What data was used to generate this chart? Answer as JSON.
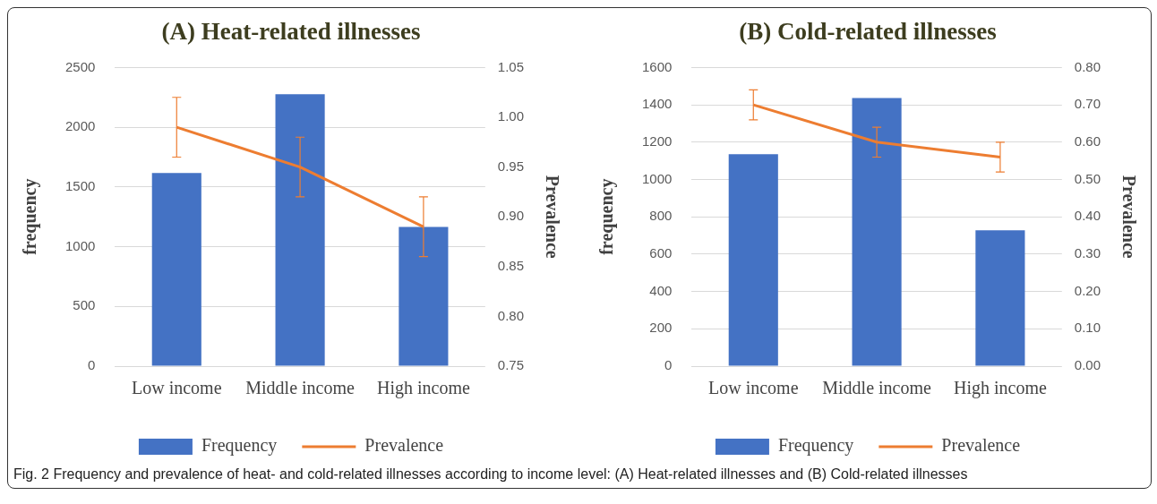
{
  "chart_data": [
    {
      "type": "bar",
      "title": "(A) Heat-related illnesses",
      "categories": [
        "Low income",
        "Middle income",
        "High income"
      ],
      "ylabel": "frequency",
      "y2label": "Prevalence",
      "ylim": [
        0,
        2500
      ],
      "yticks": [
        0,
        500,
        1000,
        1500,
        2000,
        2500
      ],
      "y2lim": [
        0.75,
        1.05
      ],
      "y2ticks": [
        {
          "value": 0.75,
          "label": "0.75"
        },
        {
          "value": 0.8,
          "label": "0.80"
        },
        {
          "value": 0.85,
          "label": "0.85"
        },
        {
          "value": 0.9,
          "label": "0.90"
        },
        {
          "value": 0.95,
          "label": "0.95"
        },
        {
          "value": 1.0,
          "label": "1.00"
        },
        {
          "value": 1.05,
          "label": "1.05"
        }
      ],
      "grid": "y",
      "legend": "bottom",
      "marker": "none",
      "series": [
        {
          "name": "Frequency",
          "type": "bar",
          "color": "#4472c4",
          "values": [
            1617,
            2276,
            1166
          ]
        },
        {
          "name": "Prevalence",
          "type": "line",
          "axis": "y2",
          "color": "#ed7d31",
          "values": [
            0.99,
            0.95,
            0.89
          ],
          "errors": [
            0.03,
            0.03,
            0.03
          ]
        }
      ]
    },
    {
      "type": "bar",
      "title": "(B) Cold-related illnesses",
      "categories": [
        "Low income",
        "Middle income",
        "High income"
      ],
      "ylabel": "frequency",
      "y2label": "Prevalence",
      "ylim": [
        0,
        1600
      ],
      "yticks": [
        0,
        200,
        400,
        600,
        800,
        1000,
        1200,
        1400,
        1600
      ],
      "y2lim": [
        0,
        0.8
      ],
      "y2ticks": [
        {
          "value": 0,
          "label": "0.00"
        },
        {
          "value": 0.1,
          "label": "0.10"
        },
        {
          "value": 0.2,
          "label": "0.20"
        },
        {
          "value": 0.3,
          "label": "0.30"
        },
        {
          "value": 0.4,
          "label": "0.40"
        },
        {
          "value": 0.5,
          "label": "0.50"
        },
        {
          "value": 0.6,
          "label": "0.60"
        },
        {
          "value": 0.7,
          "label": "0.70"
        },
        {
          "value": 0.8,
          "label": "0.80"
        }
      ],
      "grid": "y",
      "legend": "bottom",
      "marker": "none",
      "annotations": [
        "Fig. 2 Frequency and prevalence of heat- and cold-related illnesses according to income level: (A) Heat-related illnesses and (B) Cold-related illnesses"
      ],
      "series": [
        {
          "name": "Frequency",
          "type": "bar",
          "color": "#4472c4",
          "values": [
            1135,
            1436,
            728
          ]
        },
        {
          "name": "Prevalence",
          "type": "line",
          "axis": "y2",
          "color": "#ed7d31",
          "values": [
            0.7,
            0.6,
            0.56
          ],
          "errors": [
            0.04,
            0.04,
            0.04
          ]
        }
      ]
    }
  ]
}
